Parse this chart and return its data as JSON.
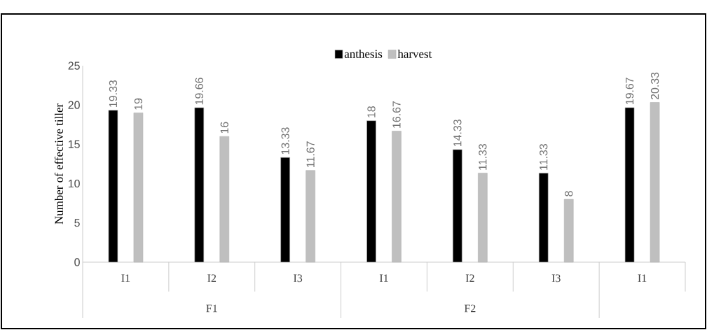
{
  "chart_data": {
    "type": "bar",
    "ylabel": "Number of effective tiller",
    "categories": [
      "I1",
      "I2",
      "I3",
      "I1",
      "I2",
      "I3",
      "I1"
    ],
    "annotations": [
      "F1",
      "F2"
    ],
    "series": [
      {
        "name": "anthesis",
        "color": "#000000",
        "values": [
          19.33,
          19.66,
          13.33,
          18,
          14.33,
          11.33,
          19.67
        ]
      },
      {
        "name": "harvest",
        "color": "#bfbfbf",
        "values": [
          19,
          16,
          11.67,
          16.67,
          11.33,
          8,
          20.33
        ]
      }
    ],
    "ylim": [
      0,
      25
    ],
    "yticks": [
      0,
      5,
      10,
      15,
      20,
      25
    ],
    "data_labels": true,
    "legend": "top",
    "grid": false
  }
}
